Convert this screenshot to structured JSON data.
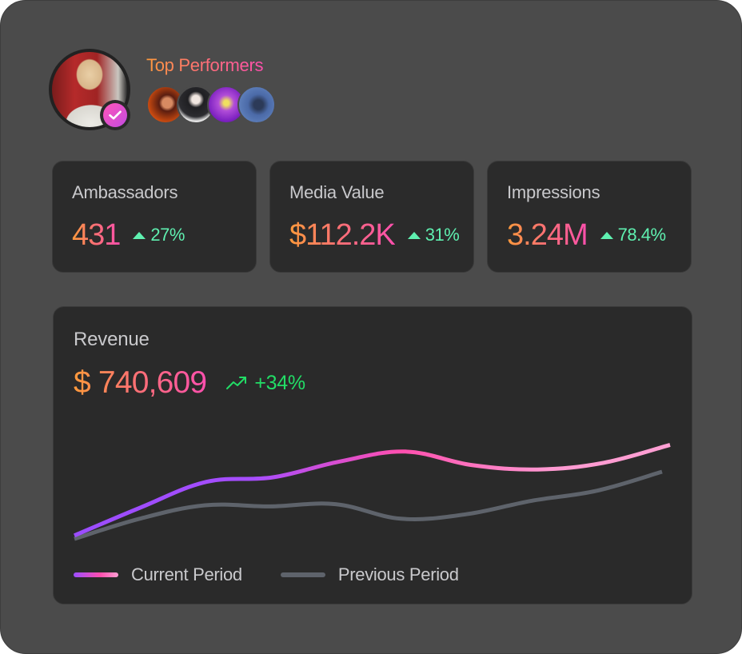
{
  "header": {
    "title": "Top Performers",
    "main_avatar": {
      "verified": true,
      "icon": "check-icon"
    },
    "performers": [
      {
        "name": "performer-1"
      },
      {
        "name": "performer-2"
      },
      {
        "name": "performer-3"
      },
      {
        "name": "performer-4"
      }
    ]
  },
  "stats": [
    {
      "label": "Ambassadors",
      "value": "431",
      "delta": "27%",
      "trend": "up"
    },
    {
      "label": "Media Value",
      "value": "$112.2K",
      "delta": "31%",
      "trend": "up"
    },
    {
      "label": "Impressions",
      "value": "3.24M",
      "delta": "78.4%",
      "trend": "up"
    }
  ],
  "revenue": {
    "label": "Revenue",
    "value": "$ 740,609",
    "delta": "+34%",
    "trend_icon": "trending-up-icon"
  },
  "colors": {
    "value_gradient": [
      "#ff9a3c",
      "#ff7272",
      "#ff4fae"
    ],
    "positive": "#5ff0b0",
    "revenue_positive": "#22dd66",
    "current_series_gradient": [
      "#9b4dff",
      "#ff4fae",
      "#ff9fd3"
    ],
    "previous_series": "#5e636b"
  },
  "chart_data": {
    "type": "line",
    "title": "Revenue",
    "x": [
      0,
      1,
      2,
      3,
      4,
      5,
      6,
      7,
      8,
      9
    ],
    "ylim": [
      0,
      100
    ],
    "grid": false,
    "legend_position": "bottom-left",
    "series": [
      {
        "name": "Current Period",
        "values": [
          3,
          28,
          51,
          55,
          69,
          78,
          66,
          62,
          68,
          84
        ]
      },
      {
        "name": "Previous Period",
        "values": [
          0,
          18,
          30,
          29,
          31,
          18,
          22,
          34,
          43,
          60
        ]
      }
    ]
  },
  "legend": {
    "items": [
      {
        "label": "Current Period"
      },
      {
        "label": "Previous Period"
      }
    ]
  }
}
